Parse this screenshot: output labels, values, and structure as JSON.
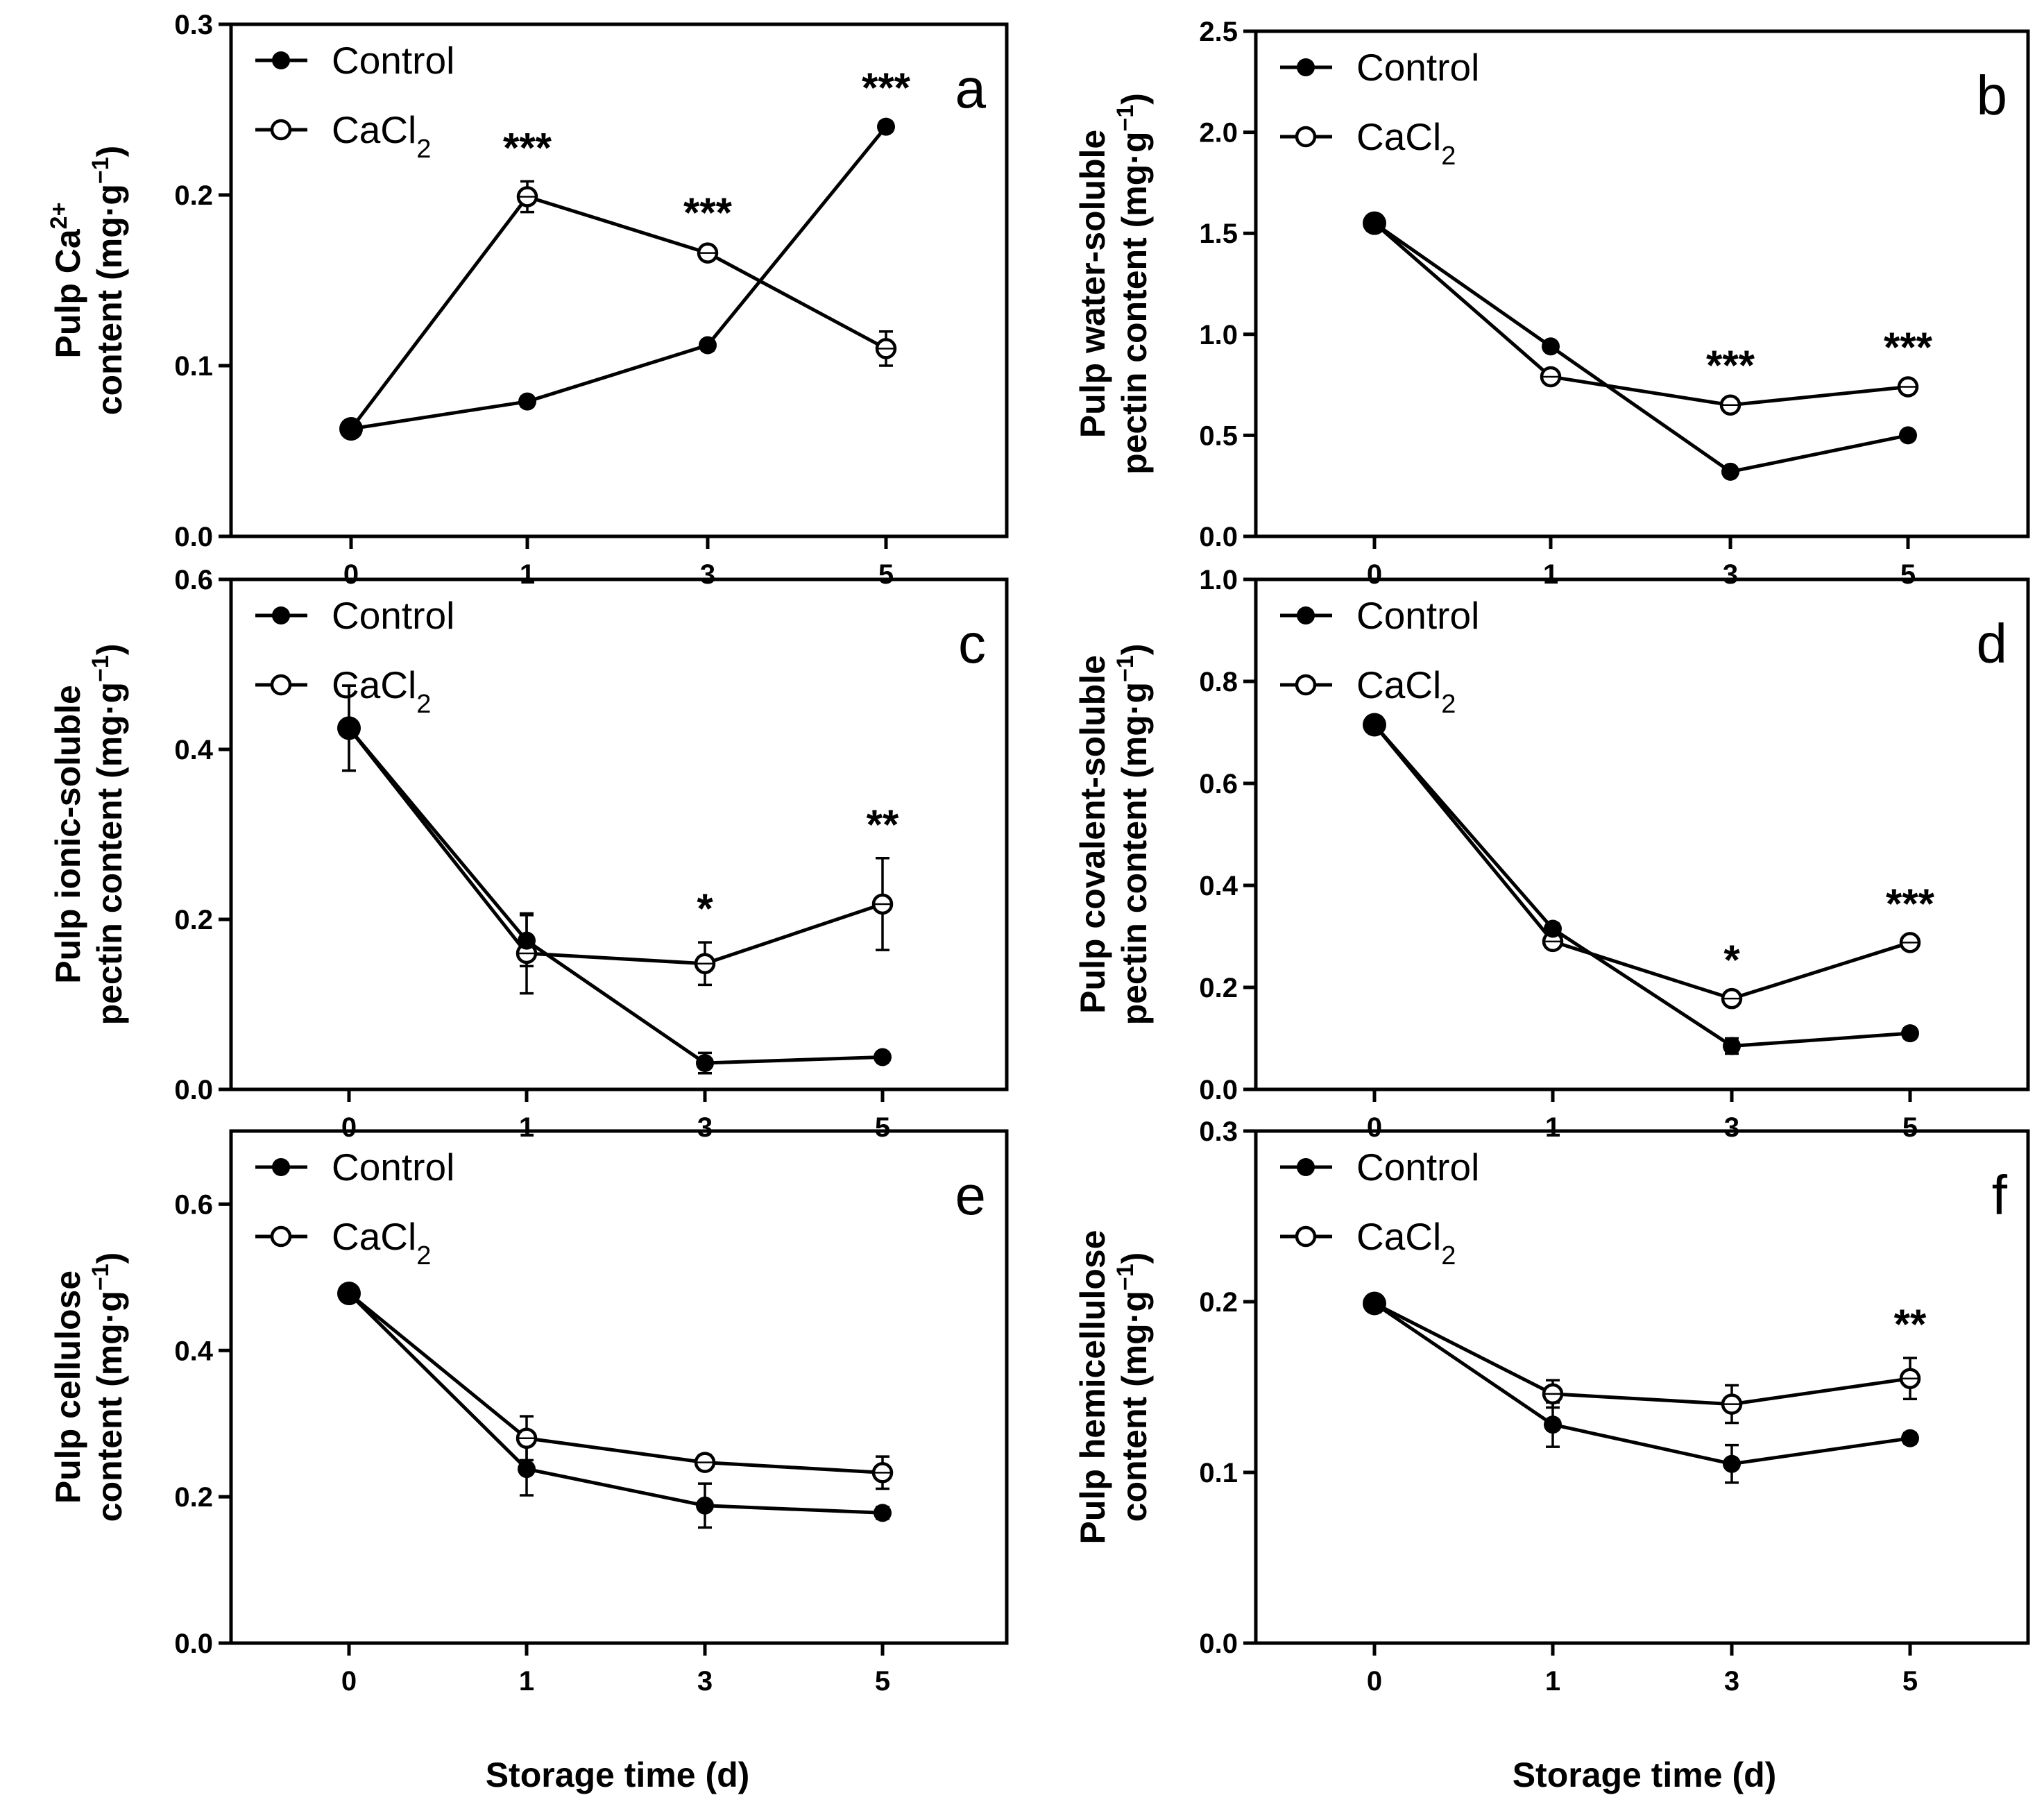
{
  "xlabel": "Storage time (d)",
  "chart_data": [
    {
      "id": "a",
      "type": "line",
      "panel_label": "a",
      "categories": [
        "0",
        "1",
        "3",
        "5"
      ],
      "ylim": [
        0,
        0.3
      ],
      "yticks": [
        "0.0",
        "0.1",
        "0.2",
        "0.3"
      ],
      "ylabel_lines": [
        [
          {
            "t": "Pulp Ca"
          },
          {
            "t": "2+",
            "sup": true
          }
        ],
        [
          {
            "t": "content (mg·g"
          },
          {
            "t": "−1",
            "sup": true
          },
          {
            "t": ")"
          }
        ]
      ],
      "legend": {
        "control": "Control",
        "cacl2_base": "CaCl",
        "cacl2_sub": "2"
      },
      "series": [
        {
          "name": "Control",
          "values": [
            0.063,
            0.079,
            0.112,
            0.24
          ],
          "errors": [
            0.003,
            0.003,
            0.003,
            0.003
          ]
        },
        {
          "name": "CaCl2",
          "values": [
            0.063,
            0.199,
            0.166,
            0.11
          ],
          "errors": [
            0.003,
            0.009,
            0.004,
            0.01
          ]
        }
      ],
      "significance": [
        "",
        "***",
        "***",
        "***"
      ]
    },
    {
      "id": "b",
      "type": "line",
      "panel_label": "b",
      "categories": [
        "0",
        "1",
        "3",
        "5"
      ],
      "ylim": [
        0,
        2.5
      ],
      "yticks": [
        "0.0",
        "0.5",
        "1.0",
        "1.5",
        "2.0",
        "2.5"
      ],
      "ylabel_lines": [
        [
          {
            "t": "Pulp water-soluble"
          }
        ],
        [
          {
            "t": "pectin content (mg·g"
          },
          {
            "t": "−1",
            "sup": true
          },
          {
            "t": ")"
          }
        ]
      ],
      "legend": {
        "control": "Control",
        "cacl2_base": "CaCl",
        "cacl2_sub": "2"
      },
      "series": [
        {
          "name": "Control",
          "values": [
            1.55,
            0.94,
            0.32,
            0.5
          ],
          "errors": [
            0.02,
            0.02,
            0.02,
            0.02
          ]
        },
        {
          "name": "CaCl2",
          "values": [
            1.55,
            0.79,
            0.65,
            0.74
          ],
          "errors": [
            0.02,
            0.03,
            0.03,
            0.03
          ]
        }
      ],
      "significance": [
        "",
        "",
        "***",
        "***"
      ]
    },
    {
      "id": "c",
      "type": "line",
      "panel_label": "c",
      "categories": [
        "0",
        "1",
        "3",
        "5"
      ],
      "ylim": [
        0,
        0.6
      ],
      "yticks": [
        "0.0",
        "0.2",
        "0.4",
        "0.6"
      ],
      "ylabel_lines": [
        [
          {
            "t": "Pulp ionic-soluble"
          }
        ],
        [
          {
            "t": "pectin content (mg·g"
          },
          {
            "t": "−1",
            "sup": true
          },
          {
            "t": ")"
          }
        ]
      ],
      "legend": {
        "control": "Control",
        "cacl2_base": "CaCl",
        "cacl2_sub": "2"
      },
      "series": [
        {
          "name": "Control",
          "values": [
            0.425,
            0.175,
            0.031,
            0.038
          ],
          "errors": [
            0.05,
            0.03,
            0.012,
            0.005
          ]
        },
        {
          "name": "CaCl2",
          "values": [
            0.425,
            0.16,
            0.148,
            0.218
          ],
          "errors": [
            0.05,
            0.047,
            0.025,
            0.054
          ]
        }
      ],
      "significance": [
        "",
        "",
        "*",
        "**"
      ]
    },
    {
      "id": "d",
      "type": "line",
      "panel_label": "d",
      "categories": [
        "0",
        "1",
        "3",
        "5"
      ],
      "ylim": [
        0,
        1.0
      ],
      "yticks": [
        "0.0",
        "0.2",
        "0.4",
        "0.6",
        "0.8",
        "1.0"
      ],
      "ylabel_lines": [
        [
          {
            "t": "Pulp covalent-soluble"
          }
        ],
        [
          {
            "t": "pectin content (mg·g"
          },
          {
            "t": "−1",
            "sup": true
          },
          {
            "t": ")"
          }
        ]
      ],
      "legend": {
        "control": "Control",
        "cacl2_base": "CaCl",
        "cacl2_sub": "2"
      },
      "series": [
        {
          "name": "Control",
          "values": [
            0.715,
            0.315,
            0.085,
            0.11
          ],
          "errors": [
            0.01,
            0.01,
            0.015,
            0.01
          ]
        },
        {
          "name": "CaCl2",
          "values": [
            0.715,
            0.29,
            0.178,
            0.288
          ],
          "errors": [
            0.01,
            0.01,
            0.01,
            0.01
          ]
        }
      ],
      "significance": [
        "",
        "",
        "*",
        "***"
      ]
    },
    {
      "id": "e",
      "type": "line",
      "panel_label": "e",
      "categories": [
        "0",
        "1",
        "3",
        "5"
      ],
      "ylim": [
        0,
        0.7
      ],
      "yticks": [
        "0.0",
        "0.2",
        "0.4",
        "0.6"
      ],
      "ylabel_lines": [
        [
          {
            "t": "Pulp cellulose"
          }
        ],
        [
          {
            "t": "content (mg·g"
          },
          {
            "t": "−1",
            "sup": true
          },
          {
            "t": ")"
          }
        ]
      ],
      "legend": {
        "control": "Control",
        "cacl2_base": "CaCl",
        "cacl2_sub": "2"
      },
      "series": [
        {
          "name": "Control",
          "values": [
            0.478,
            0.238,
            0.188,
            0.178
          ],
          "errors": [
            0.01,
            0.036,
            0.03,
            0.008
          ]
        },
        {
          "name": "CaCl2",
          "values": [
            0.478,
            0.28,
            0.247,
            0.233
          ],
          "errors": [
            0.01,
            0.03,
            0.01,
            0.022
          ]
        }
      ],
      "significance": [
        "",
        "",
        "",
        ""
      ]
    },
    {
      "id": "f",
      "type": "line",
      "panel_label": "f",
      "categories": [
        "0",
        "1",
        "3",
        "5"
      ],
      "ylim": [
        0,
        0.3
      ],
      "yticks": [
        "0.0",
        "0.1",
        "0.2",
        "0.3"
      ],
      "ylabel_lines": [
        [
          {
            "t": "Pulp hemicellulose"
          }
        ],
        [
          {
            "t": "content (mg·g"
          },
          {
            "t": "−1",
            "sup": true
          },
          {
            "t": ")"
          }
        ]
      ],
      "legend": {
        "control": "Control",
        "cacl2_base": "CaCl",
        "cacl2_sub": "2"
      },
      "series": [
        {
          "name": "Control",
          "values": [
            0.199,
            0.128,
            0.105,
            0.12
          ],
          "errors": [
            0.003,
            0.013,
            0.011,
            0.003
          ]
        },
        {
          "name": "CaCl2",
          "values": [
            0.199,
            0.146,
            0.14,
            0.155
          ],
          "errors": [
            0.003,
            0.008,
            0.011,
            0.012
          ]
        }
      ],
      "significance": [
        "",
        "",
        "",
        "**"
      ]
    }
  ]
}
